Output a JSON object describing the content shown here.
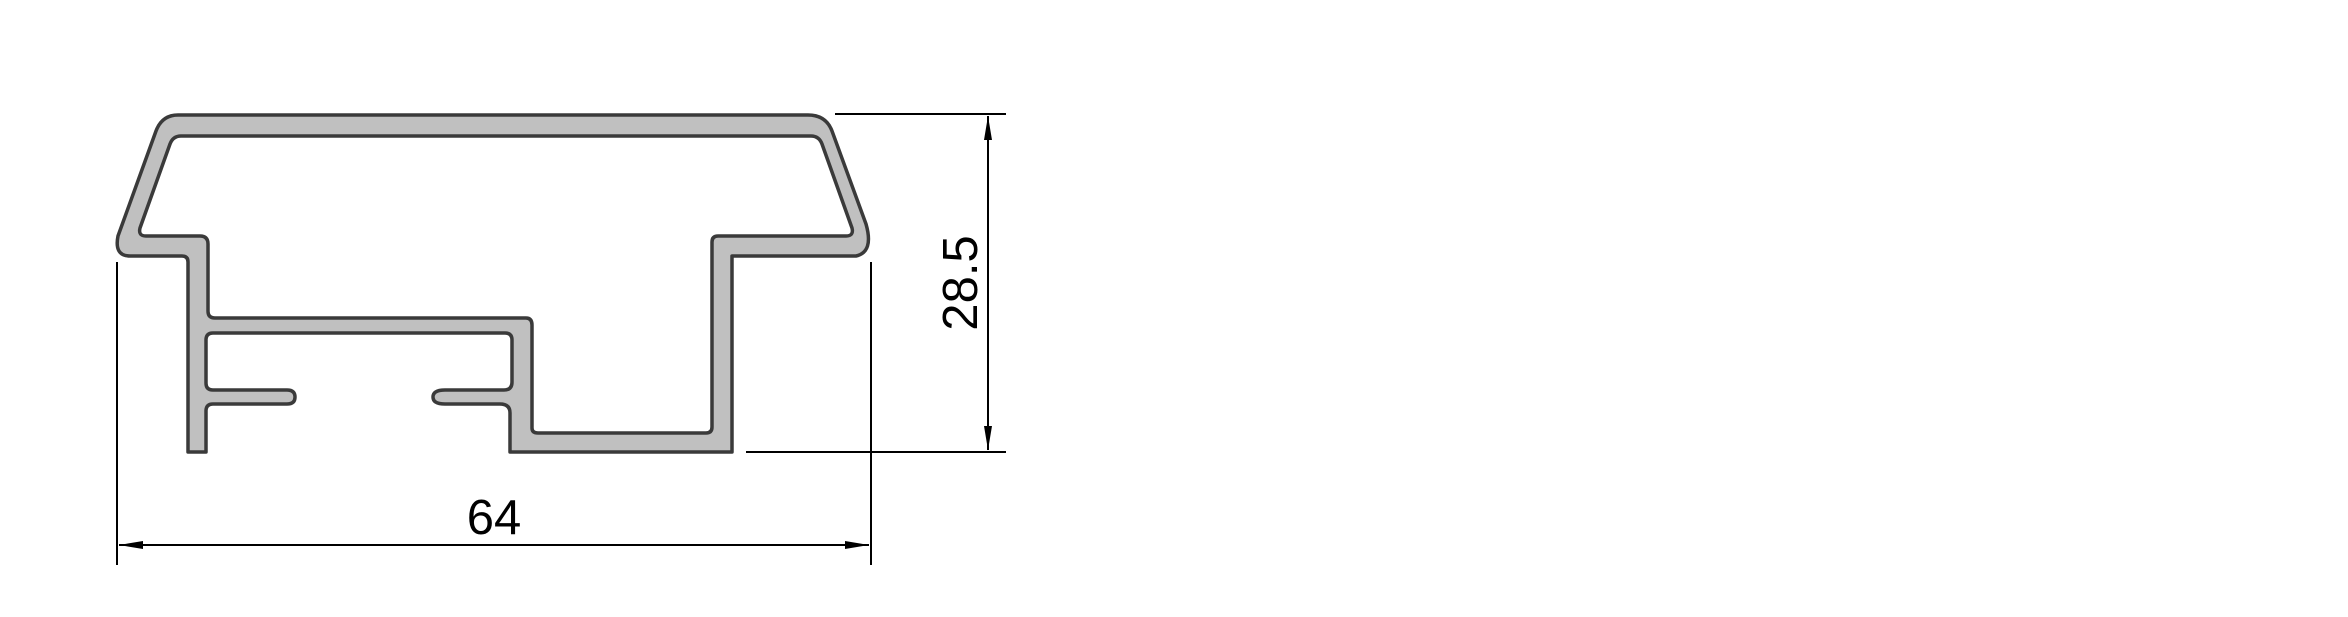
{
  "drawing": {
    "type": "aluminium profile cross-section",
    "colors": {
      "profile_fill": "#c0c0c0",
      "profile_outline": "#3a3a3a",
      "dimension_lines": "#000000",
      "background": "#ffffff"
    },
    "dimensions": {
      "width": {
        "value": "64",
        "orientation": "horizontal"
      },
      "height": {
        "value": "28.5",
        "orientation": "vertical"
      }
    }
  }
}
